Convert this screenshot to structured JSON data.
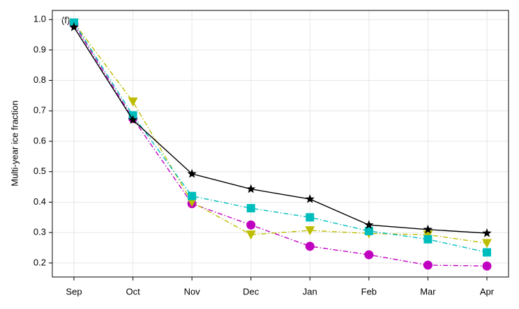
{
  "chart_data": {
    "type": "line",
    "annotation": "(f)",
    "ylabel": "Multi-year ice fraction",
    "categories": [
      "Sep",
      "Oct",
      "Nov",
      "Dec",
      "Jan",
      "Feb",
      "Mar",
      "Apr"
    ],
    "series": [
      {
        "color": "#c000c0",
        "marker": "circle",
        "linestyle": "dashdot",
        "values": [
          0.985,
          0.675,
          0.395,
          0.325,
          0.255,
          0.227,
          0.193,
          0.19
        ]
      },
      {
        "color": "#bdbd00",
        "marker": "triangle-down",
        "linestyle": "dashdot",
        "values": [
          0.99,
          0.73,
          0.4,
          0.293,
          0.307,
          0.297,
          0.293,
          0.265
        ]
      },
      {
        "color": "#00bdbd",
        "marker": "square",
        "linestyle": "dashdot",
        "values": [
          0.99,
          0.685,
          0.42,
          0.38,
          0.35,
          0.305,
          0.278,
          0.235
        ]
      },
      {
        "color": "#000000",
        "marker": "star",
        "linestyle": "solid",
        "values": [
          0.975,
          0.67,
          0.493,
          0.443,
          0.41,
          0.325,
          0.31,
          0.298
        ]
      }
    ],
    "ylim": [
      0.154,
      1.03
    ],
    "yticks": [
      0.2,
      0.3,
      0.4,
      0.5,
      0.6,
      0.7,
      0.8,
      0.9,
      {
        "value": 1,
        "label": "1.0"
      }
    ],
    "grid": true
  }
}
